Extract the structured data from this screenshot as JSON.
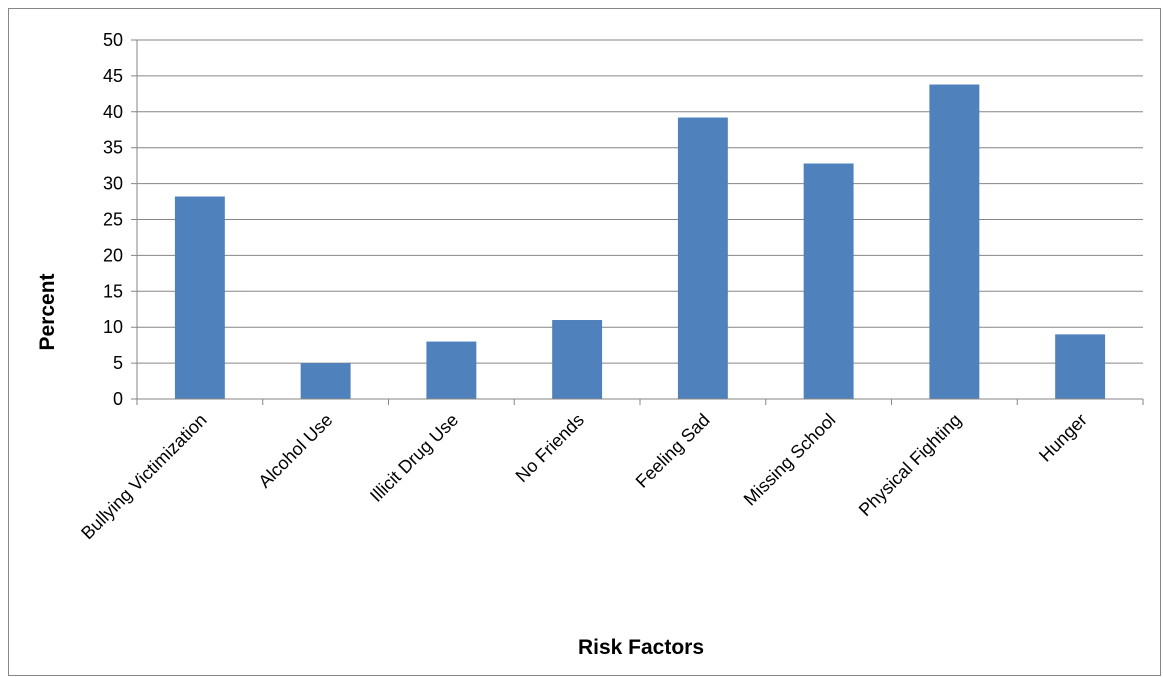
{
  "chart_data": {
    "type": "bar",
    "title": "",
    "xlabel": "Risk Factors",
    "ylabel": "Percent",
    "categories": [
      "Bullying Victimization",
      "Alcohol Use",
      "Illicit Drug Use",
      "No Friends",
      "Feeling Sad",
      "Missing School",
      "Physical Fighting",
      "Hunger"
    ],
    "values": [
      28.2,
      5.0,
      8.0,
      11.0,
      39.2,
      32.8,
      43.8,
      9.0
    ],
    "ylim": [
      0,
      50
    ],
    "yticks": [
      "0",
      "5",
      "10",
      "15",
      "20",
      "25",
      "30",
      "35",
      "40",
      "45",
      "50"
    ],
    "grid": true,
    "legend": "none",
    "bar_color": "#4F81BD",
    "grid_color": "#868686"
  }
}
